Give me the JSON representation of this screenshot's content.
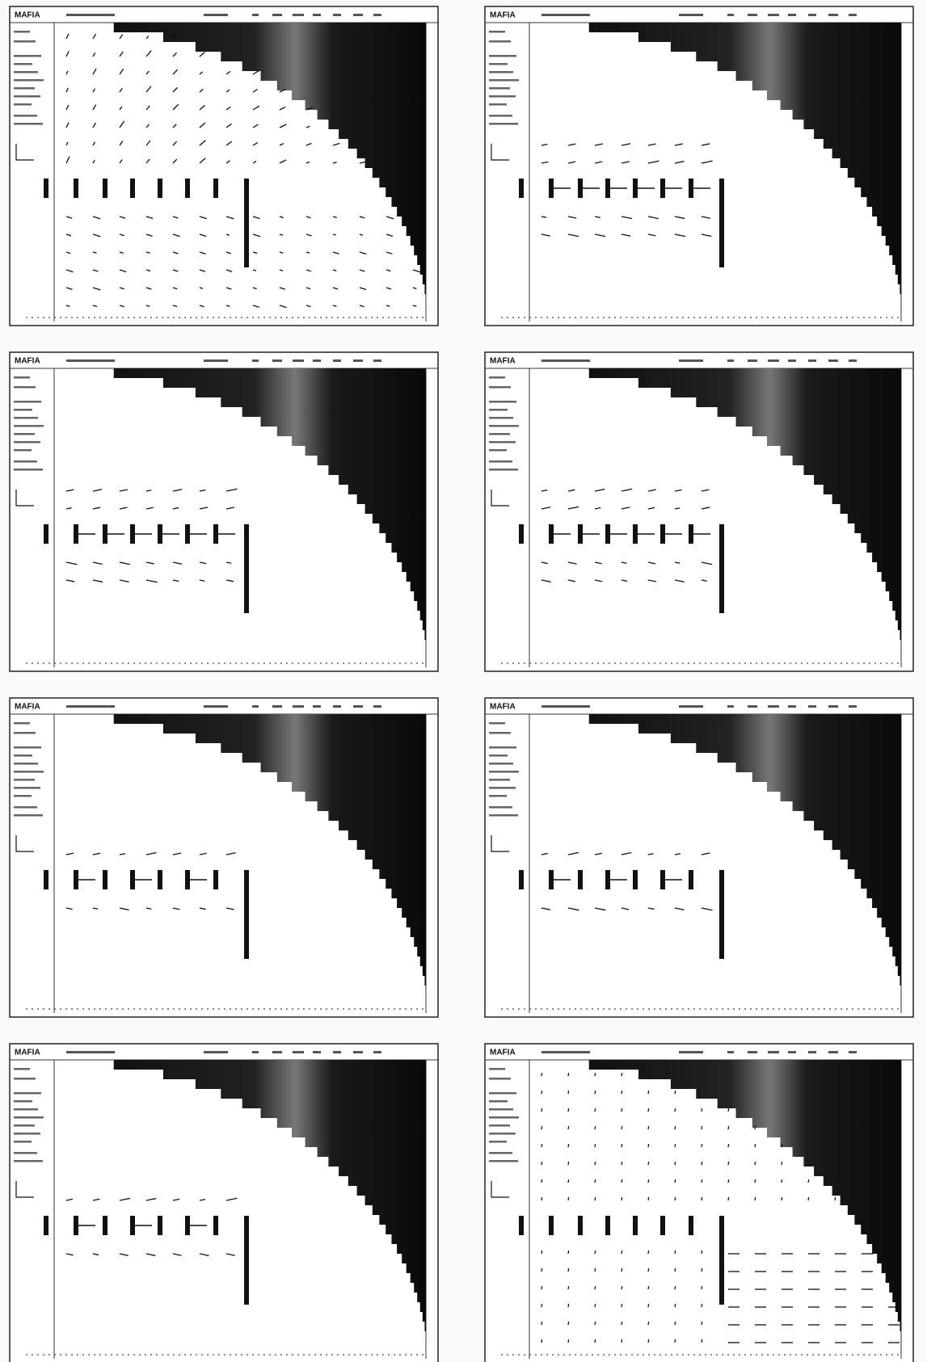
{
  "panels": [
    {
      "title": "MAFIA"
    },
    {
      "title": "MAFIA"
    },
    {
      "title": "MAFIA"
    },
    {
      "title": "MAFIA"
    },
    {
      "title": "MAFIA"
    },
    {
      "title": "MAFIA"
    },
    {
      "title": "MAFIA"
    },
    {
      "title": "MAFIA"
    }
  ]
}
